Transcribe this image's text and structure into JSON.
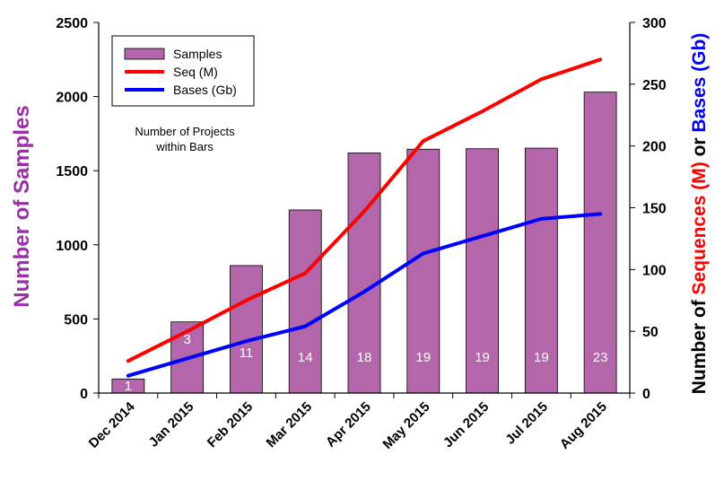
{
  "chart_data": {
    "type": "bar",
    "categories": [
      "Dec 2014",
      "Jan 2015",
      "Feb 2015",
      "Mar 2015",
      "Apr 2015",
      "May 2015",
      "Jun 2015",
      "Jul 2015",
      "Aug 2015"
    ],
    "series": [
      {
        "name": "Samples",
        "type": "bar",
        "axis": "left",
        "values": [
          95,
          480,
          860,
          1235,
          1620,
          1645,
          1648,
          1652,
          2030
        ],
        "color": "#b366aa"
      },
      {
        "name": "Seq (M)",
        "type": "line",
        "axis": "right",
        "values": [
          26,
          50,
          75,
          97,
          147,
          204,
          228,
          254,
          270
        ],
        "color": "#ff0000"
      },
      {
        "name": "Bases (Gb)",
        "type": "line",
        "axis": "right",
        "values": [
          14,
          28,
          42,
          54,
          82,
          113,
          127,
          141,
          145
        ],
        "color": "#0000ff"
      }
    ],
    "bar_labels": [
      "1",
      "3",
      "11",
      "14",
      "18",
      "19",
      "19",
      "19",
      "23"
    ],
    "left_axis": {
      "label": "Number of Samples",
      "label_color": "#9b30a8",
      "ylim": [
        0,
        2500
      ],
      "ticks": [
        0,
        500,
        1000,
        1500,
        2000,
        2500
      ]
    },
    "right_axis": {
      "label_parts": [
        {
          "text": "Number of ",
          "color": "#000000"
        },
        {
          "text": "Sequences (M)",
          "color": "#ff0000"
        },
        {
          "text": " or ",
          "color": "#000000"
        },
        {
          "text": "Bases (Gb)",
          "color": "#0000ff"
        }
      ],
      "ylim": [
        0,
        300
      ],
      "ticks": [
        0,
        50,
        100,
        150,
        200,
        250,
        300
      ]
    },
    "annotation": [
      "Number of Projects",
      "within Bars"
    ],
    "legend": {
      "position": "top-left",
      "entries": [
        {
          "label": "Samples",
          "kind": "bar",
          "color": "#b366aa"
        },
        {
          "label": "Seq (M)",
          "kind": "line",
          "color": "#ff0000"
        },
        {
          "label": "Bases (Gb)",
          "kind": "line",
          "color": "#0000ff"
        }
      ]
    },
    "grid": false
  }
}
